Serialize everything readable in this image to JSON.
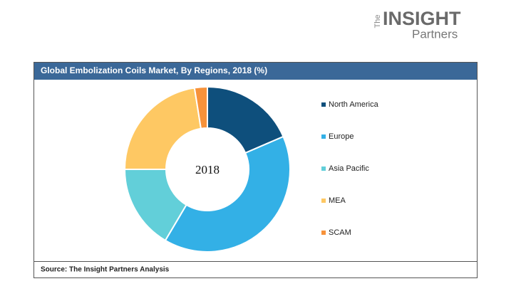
{
  "logo": {
    "the": "The",
    "insight": "INSIGHT",
    "partners": "Partners"
  },
  "chart_data": {
    "type": "donut",
    "title": "Global Embolization Coils Market, By Regions, 2018 (%)",
    "center_label": "2018",
    "categories": [
      "North America",
      "Europe",
      "Asia Pacific",
      "MEA",
      "SCAM"
    ],
    "values": [
      18.5,
      40,
      16.5,
      22.5,
      2.5
    ],
    "colors": [
      "#0e4f7c",
      "#33b0e6",
      "#62cfd9",
      "#fec863",
      "#f7923a"
    ],
    "source": "Source: The Insight Partners Analysis"
  }
}
